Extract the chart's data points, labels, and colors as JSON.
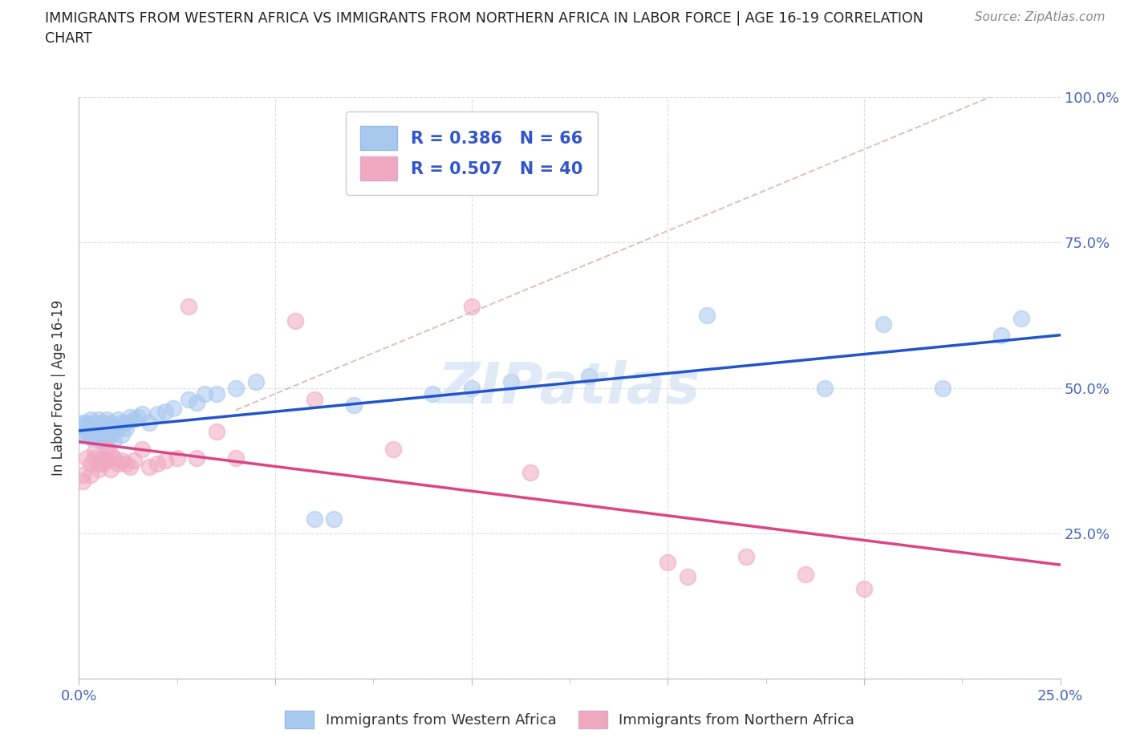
{
  "title_line1": "IMMIGRANTS FROM WESTERN AFRICA VS IMMIGRANTS FROM NORTHERN AFRICA IN LABOR FORCE | AGE 16-19 CORRELATION",
  "title_line2": "CHART",
  "source": "Source: ZipAtlas.com",
  "ylabel": "In Labor Force | Age 16-19",
  "xlim": [
    0.0,
    0.25
  ],
  "ylim": [
    0.0,
    1.0
  ],
  "blue_color": "#a8c8f0",
  "pink_color": "#f0a8c0",
  "blue_line_color": "#2255cc",
  "pink_line_color": "#dd4488",
  "dash_color": "#ccaaaa",
  "watermark_color": "#c8d8f0",
  "R_blue": 0.386,
  "N_blue": 66,
  "R_pink": 0.507,
  "N_pink": 40,
  "blue_x": [
    0.0005,
    0.001,
    0.001,
    0.0015,
    0.002,
    0.002,
    0.0025,
    0.003,
    0.003,
    0.003,
    0.003,
    0.004,
    0.004,
    0.004,
    0.004,
    0.005,
    0.005,
    0.005,
    0.005,
    0.006,
    0.006,
    0.006,
    0.006,
    0.006,
    0.007,
    0.007,
    0.007,
    0.007,
    0.008,
    0.008,
    0.008,
    0.009,
    0.009,
    0.01,
    0.01,
    0.011,
    0.011,
    0.012,
    0.012,
    0.013,
    0.014,
    0.015,
    0.016,
    0.018,
    0.02,
    0.022,
    0.024,
    0.028,
    0.03,
    0.032,
    0.035,
    0.04,
    0.045,
    0.06,
    0.065,
    0.07,
    0.09,
    0.1,
    0.11,
    0.13,
    0.16,
    0.19,
    0.205,
    0.22,
    0.235,
    0.24
  ],
  "blue_y": [
    0.42,
    0.44,
    0.42,
    0.435,
    0.44,
    0.425,
    0.435,
    0.415,
    0.43,
    0.445,
    0.415,
    0.42,
    0.44,
    0.43,
    0.415,
    0.43,
    0.445,
    0.42,
    0.41,
    0.435,
    0.425,
    0.44,
    0.42,
    0.41,
    0.43,
    0.445,
    0.42,
    0.41,
    0.43,
    0.44,
    0.42,
    0.435,
    0.41,
    0.445,
    0.43,
    0.44,
    0.42,
    0.44,
    0.43,
    0.45,
    0.445,
    0.45,
    0.455,
    0.44,
    0.455,
    0.46,
    0.465,
    0.48,
    0.475,
    0.49,
    0.49,
    0.5,
    0.51,
    0.275,
    0.275,
    0.47,
    0.49,
    0.5,
    0.51,
    0.52,
    0.625,
    0.5,
    0.61,
    0.5,
    0.59,
    0.62
  ],
  "pink_x": [
    0.001,
    0.001,
    0.002,
    0.003,
    0.003,
    0.004,
    0.004,
    0.005,
    0.005,
    0.006,
    0.006,
    0.007,
    0.007,
    0.008,
    0.008,
    0.009,
    0.01,
    0.011,
    0.012,
    0.013,
    0.014,
    0.016,
    0.018,
    0.02,
    0.022,
    0.025,
    0.028,
    0.03,
    0.035,
    0.04,
    0.055,
    0.06,
    0.08,
    0.1,
    0.115,
    0.15,
    0.155,
    0.17,
    0.185,
    0.2
  ],
  "pink_y": [
    0.35,
    0.34,
    0.38,
    0.37,
    0.35,
    0.39,
    0.38,
    0.37,
    0.36,
    0.38,
    0.37,
    0.395,
    0.375,
    0.385,
    0.36,
    0.38,
    0.37,
    0.375,
    0.37,
    0.365,
    0.375,
    0.395,
    0.365,
    0.37,
    0.375,
    0.38,
    0.64,
    0.38,
    0.425,
    0.38,
    0.615,
    0.48,
    0.395,
    0.64,
    0.355,
    0.2,
    0.175,
    0.21,
    0.18,
    0.155
  ],
  "background_color": "#ffffff",
  "grid_color": "#dddddd"
}
